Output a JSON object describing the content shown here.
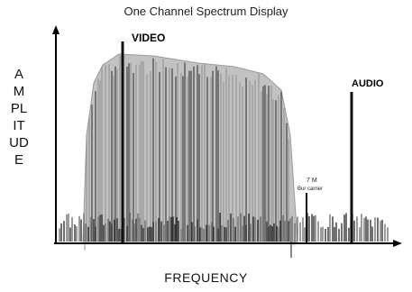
{
  "title": "One Channel Spectrum Display",
  "y_axis_label": "AMPLITUDE",
  "x_axis_label": "FREQUENCY",
  "video_label": "VIDEO",
  "audio_label": "AUDIO",
  "annotation_line1": "7 M",
  "annotation_line2": "Bur carrier",
  "colors": {
    "envelope": "#c2c2c2",
    "lines": "#1a1a1a",
    "axis": "#000000"
  }
}
